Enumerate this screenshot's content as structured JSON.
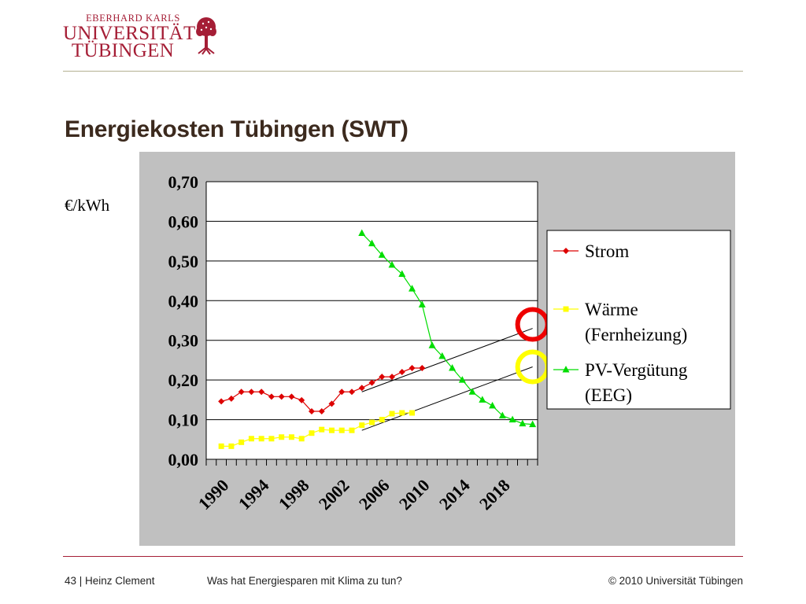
{
  "logo": {
    "line_small": "EBERHARD KARLS",
    "line_big1": "UNIVERSITÄT",
    "line_big2": "TÜBINGEN",
    "tree_icon": "university-tree-seal",
    "color": "#a51e36"
  },
  "slide": {
    "title": "Energiekosten Tübingen (SWT)",
    "unit_label": "€/kWh"
  },
  "footer": {
    "page_author": "43 | Heinz Clement",
    "talk_title": "Was hat Energiesparen mit Klima zu tun?",
    "copyright": "© 2010 Universität Tübingen"
  },
  "chart_data": {
    "type": "line",
    "background": "#c0c0c0",
    "plot_background": "#ffffff",
    "grid": true,
    "legend_placement": "right",
    "xlabel": "",
    "ylabel": "€/kWh",
    "x_tick_labels": [
      "1990",
      "1994",
      "1998",
      "2002",
      "2006",
      "2010",
      "2014",
      "2018"
    ],
    "x_tick_positions": [
      1990,
      1994,
      1998,
      2002,
      2006,
      2010,
      2014,
      2018
    ],
    "xlim": [
      1990,
      2022
    ],
    "y_tick_labels": [
      "0,00",
      "0,10",
      "0,20",
      "0,30",
      "0,40",
      "0,50",
      "0,60",
      "0,70"
    ],
    "y_tick_values": [
      0,
      0.1,
      0.2,
      0.3,
      0.4,
      0.5,
      0.6,
      0.7
    ],
    "ylim": [
      0,
      0.7
    ],
    "series": [
      {
        "name": "Strom",
        "color": "#dd0000",
        "marker": "diamond",
        "x": [
          1991,
          1992,
          1993,
          1994,
          1995,
          1996,
          1997,
          1998,
          1999,
          2000,
          2001,
          2002,
          2003,
          2004,
          2005,
          2006,
          2007,
          2008,
          2009,
          2010,
          2011
        ],
        "y": [
          0.146,
          0.153,
          0.17,
          0.17,
          0.17,
          0.158,
          0.158,
          0.158,
          0.149,
          0.121,
          0.121,
          0.14,
          0.17,
          0.17,
          0.18,
          0.193,
          0.208,
          0.208,
          0.22,
          0.23,
          0.23
        ]
      },
      {
        "name": "Wärme (Fernheizung)",
        "color": "#ffff00",
        "marker": "square",
        "x": [
          1991,
          1992,
          1993,
          1994,
          1995,
          1996,
          1997,
          1998,
          1999,
          2000,
          2001,
          2002,
          2003,
          2004,
          2005,
          2006,
          2007,
          2008,
          2009,
          2010
        ],
        "y": [
          0.033,
          0.033,
          0.043,
          0.052,
          0.052,
          0.052,
          0.056,
          0.056,
          0.052,
          0.066,
          0.075,
          0.073,
          0.073,
          0.073,
          0.086,
          0.093,
          0.1,
          0.115,
          0.117,
          0.117
        ]
      },
      {
        "name": "PV-Vergütung (EEG)",
        "color": "#00dd00",
        "marker": "triangle",
        "x": [
          2005,
          2006,
          2007,
          2008,
          2009,
          2010,
          2011,
          2012,
          2013,
          2014,
          2015,
          2016,
          2017,
          2018,
          2019,
          2020,
          2021,
          2022
        ],
        "y": [
          0.57,
          0.544,
          0.515,
          0.49,
          0.467,
          0.43,
          0.39,
          0.287,
          0.26,
          0.23,
          0.2,
          0.17,
          0.15,
          0.135,
          0.11,
          0.1,
          0.09,
          0.088
        ]
      }
    ],
    "trend_lines": [
      {
        "color": "#000000",
        "x": [
          2005,
          2022
        ],
        "y": [
          0.17,
          0.33
        ]
      },
      {
        "color": "#000000",
        "x": [
          2005,
          2022
        ],
        "y": [
          0.073,
          0.233
        ]
      }
    ],
    "highlight_circles": [
      {
        "color": "#ee0000",
        "x": 2022,
        "y": 0.34
      },
      {
        "color": "#ffff00",
        "x": 2022,
        "y": 0.233
      }
    ]
  }
}
